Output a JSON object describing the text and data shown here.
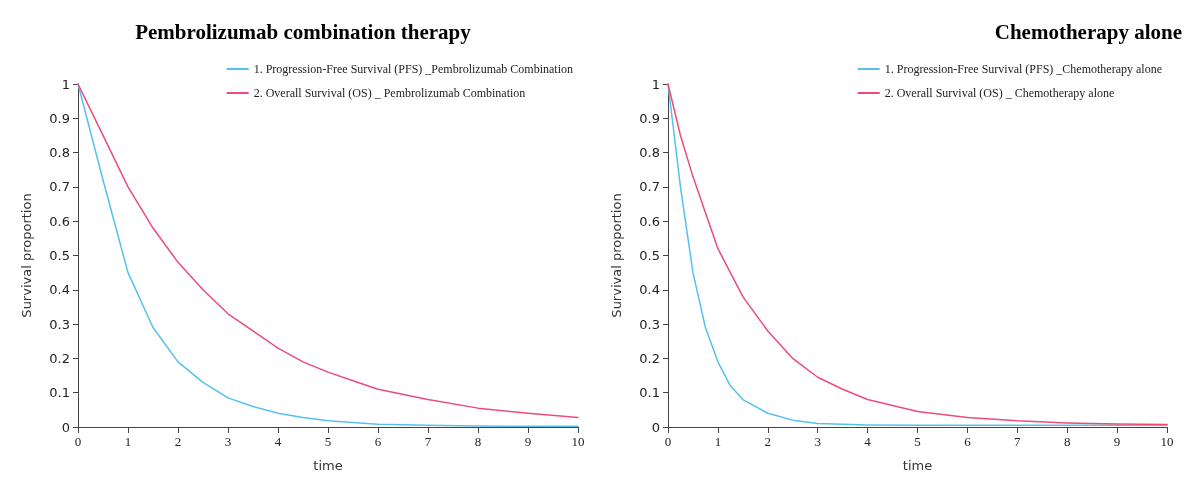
{
  "chart_data": [
    {
      "type": "line",
      "title": "Pembrolizumab combination therapy",
      "xlabel": "time",
      "ylabel": "Survival proportion",
      "xlim": [
        0,
        10
      ],
      "ylim": [
        0,
        1
      ],
      "xticks": [
        0,
        1,
        2,
        3,
        4,
        5,
        6,
        7,
        8,
        9,
        10
      ],
      "yticks": [
        0,
        0.1,
        0.2,
        0.3,
        0.4,
        0.5,
        0.6,
        0.7,
        0.8,
        0.9,
        1
      ],
      "legend": "top right",
      "grid": false,
      "marker": "none",
      "line_style": "solid",
      "series": [
        {
          "name": "1. Progression-Free Survival (PFS) _Pembrolizumab Combination",
          "color": "#55c1ee",
          "x": [
            0,
            0.5,
            1,
            1.5,
            2,
            2.5,
            3,
            3.5,
            4,
            4.5,
            5,
            6,
            7,
            8,
            9,
            10
          ],
          "values": [
            1,
            0.72,
            0.45,
            0.29,
            0.19,
            0.13,
            0.085,
            0.06,
            0.04,
            0.028,
            0.018,
            0.008,
            0.005,
            0.003,
            0.002,
            0.002
          ]
        },
        {
          "name": "2. Overall Survival (OS) _ Pembrolizumab Combination",
          "color": "#ee4c78",
          "x": [
            0,
            0.5,
            1,
            1.5,
            2,
            2.5,
            3,
            3.5,
            4,
            4.5,
            5,
            5.5,
            6,
            7,
            8,
            9,
            10
          ],
          "values": [
            1,
            0.85,
            0.7,
            0.58,
            0.48,
            0.4,
            0.33,
            0.28,
            0.23,
            0.19,
            0.16,
            0.135,
            0.11,
            0.08,
            0.055,
            0.04,
            0.028
          ]
        }
      ]
    },
    {
      "type": "line",
      "title": "Chemotherapy alone",
      "xlabel": "time",
      "ylabel": "Survival proportion",
      "xlim": [
        0,
        10
      ],
      "ylim": [
        0,
        1
      ],
      "xticks": [
        0,
        1,
        2,
        3,
        4,
        5,
        6,
        7,
        8,
        9,
        10
      ],
      "yticks": [
        0,
        0.1,
        0.2,
        0.3,
        0.4,
        0.5,
        0.6,
        0.7,
        0.8,
        0.9,
        1
      ],
      "legend": "top right",
      "grid": false,
      "marker": "none",
      "line_style": "solid",
      "series": [
        {
          "name": "1. Progression-Free Survival (PFS) _Chemotherapy alone",
          "color": "#55c1ee",
          "x": [
            0,
            0.25,
            0.5,
            0.75,
            1,
            1.25,
            1.5,
            2,
            2.5,
            3,
            4,
            5,
            6,
            8,
            10
          ],
          "values": [
            1,
            0.7,
            0.45,
            0.29,
            0.19,
            0.12,
            0.08,
            0.04,
            0.02,
            0.01,
            0.006,
            0.005,
            0.005,
            0.005,
            0.005
          ]
        },
        {
          "name": "2. Overall Survival (OS) _ Chemotherapy alone",
          "color": "#ee4c78",
          "x": [
            0,
            0.25,
            0.5,
            1,
            1.5,
            2,
            2.5,
            3,
            3.5,
            4,
            5,
            6,
            7,
            8,
            9,
            10
          ],
          "values": [
            1,
            0.85,
            0.73,
            0.52,
            0.38,
            0.28,
            0.2,
            0.145,
            0.11,
            0.08,
            0.045,
            0.028,
            0.018,
            0.012,
            0.009,
            0.007
          ]
        }
      ]
    }
  ]
}
